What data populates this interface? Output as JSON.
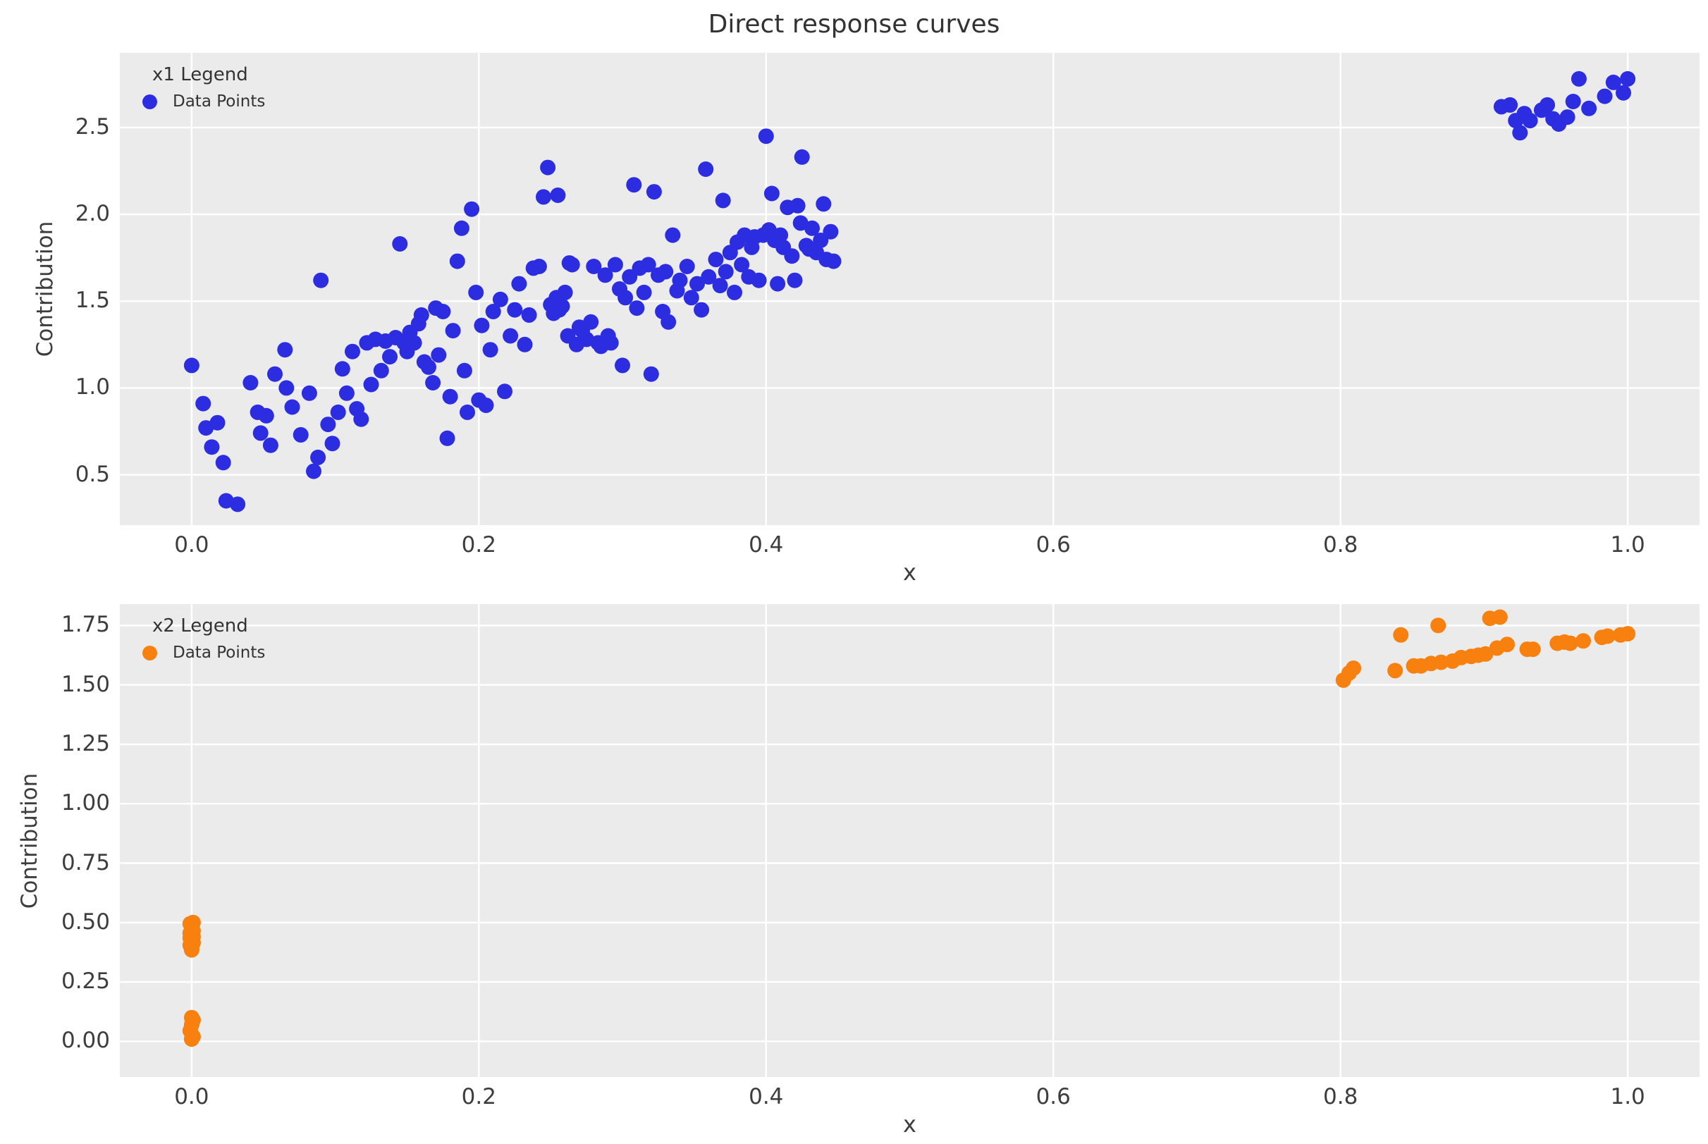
{
  "title": "Direct response curves",
  "colors": {
    "figure_bg": "#ffffff",
    "axes_bg": "#ebebeb",
    "grid": "#ffffff",
    "text": "#3d3d3d",
    "series1": "#2c2ce0",
    "series2": "#f8800e"
  },
  "chart_data": [
    {
      "type": "scatter",
      "legend_title": "x1 Legend",
      "legend_entry": "Data Points",
      "series_color": "#2c2ce0",
      "xlabel": "x",
      "ylabel": "Contribution",
      "xlim": [
        -0.05,
        1.05
      ],
      "ylim": [
        0.21,
        2.93
      ],
      "grid": true,
      "legend_position": "upper left",
      "xticks": {
        "values": [
          0.0,
          0.2,
          0.4,
          0.6,
          0.8,
          1.0
        ],
        "labels": [
          "0.0",
          "0.2",
          "0.4",
          "0.6",
          "0.8",
          "1.0"
        ]
      },
      "yticks": {
        "values": [
          0.5,
          1.0,
          1.5,
          2.0,
          2.5
        ],
        "labels": [
          "0.5",
          "1.0",
          "1.5",
          "2.0",
          "2.5"
        ]
      },
      "points": [
        [
          0.0,
          1.13
        ],
        [
          0.008,
          0.91
        ],
        [
          0.01,
          0.77
        ],
        [
          0.014,
          0.66
        ],
        [
          0.018,
          0.8
        ],
        [
          0.022,
          0.57
        ],
        [
          0.024,
          0.35
        ],
        [
          0.032,
          0.33
        ],
        [
          0.041,
          1.03
        ],
        [
          0.046,
          0.86
        ],
        [
          0.048,
          0.74
        ],
        [
          0.052,
          0.84
        ],
        [
          0.055,
          0.67
        ],
        [
          0.058,
          1.08
        ],
        [
          0.065,
          1.22
        ],
        [
          0.066,
          1.0
        ],
        [
          0.07,
          0.89
        ],
        [
          0.076,
          0.73
        ],
        [
          0.082,
          0.97
        ],
        [
          0.085,
          0.52
        ],
        [
          0.088,
          0.6
        ],
        [
          0.09,
          1.62
        ],
        [
          0.095,
          0.79
        ],
        [
          0.098,
          0.68
        ],
        [
          0.102,
          0.86
        ],
        [
          0.105,
          1.11
        ],
        [
          0.108,
          0.97
        ],
        [
          0.112,
          1.21
        ],
        [
          0.115,
          0.88
        ],
        [
          0.118,
          0.82
        ],
        [
          0.122,
          1.26
        ],
        [
          0.125,
          1.02
        ],
        [
          0.128,
          1.28
        ],
        [
          0.132,
          1.1
        ],
        [
          0.135,
          1.27
        ],
        [
          0.138,
          1.18
        ],
        [
          0.142,
          1.29
        ],
        [
          0.145,
          1.83
        ],
        [
          0.148,
          1.26
        ],
        [
          0.15,
          1.21
        ],
        [
          0.152,
          1.32
        ],
        [
          0.155,
          1.26
        ],
        [
          0.158,
          1.37
        ],
        [
          0.16,
          1.42
        ],
        [
          0.162,
          1.15
        ],
        [
          0.165,
          1.12
        ],
        [
          0.168,
          1.03
        ],
        [
          0.17,
          1.46
        ],
        [
          0.172,
          1.19
        ],
        [
          0.175,
          1.44
        ],
        [
          0.178,
          0.71
        ],
        [
          0.18,
          0.95
        ],
        [
          0.182,
          1.33
        ],
        [
          0.185,
          1.73
        ],
        [
          0.188,
          1.92
        ],
        [
          0.19,
          1.1
        ],
        [
          0.192,
          0.86
        ],
        [
          0.195,
          2.03
        ],
        [
          0.198,
          1.55
        ],
        [
          0.2,
          0.93
        ],
        [
          0.202,
          1.36
        ],
        [
          0.205,
          0.9
        ],
        [
          0.208,
          1.22
        ],
        [
          0.21,
          1.44
        ],
        [
          0.215,
          1.51
        ],
        [
          0.218,
          0.98
        ],
        [
          0.222,
          1.3
        ],
        [
          0.225,
          1.45
        ],
        [
          0.228,
          1.6
        ],
        [
          0.232,
          1.25
        ],
        [
          0.235,
          1.42
        ],
        [
          0.238,
          1.69
        ],
        [
          0.242,
          1.7
        ],
        [
          0.245,
          2.1
        ],
        [
          0.248,
          2.27
        ],
        [
          0.25,
          1.48
        ],
        [
          0.252,
          1.43
        ],
        [
          0.254,
          1.52
        ],
        [
          0.255,
          2.11
        ],
        [
          0.256,
          1.45
        ],
        [
          0.258,
          1.47
        ],
        [
          0.26,
          1.55
        ],
        [
          0.262,
          1.3
        ],
        [
          0.263,
          1.72
        ],
        [
          0.265,
          1.71
        ],
        [
          0.268,
          1.25
        ],
        [
          0.27,
          1.35
        ],
        [
          0.272,
          1.33
        ],
        [
          0.275,
          1.28
        ],
        [
          0.278,
          1.38
        ],
        [
          0.28,
          1.7
        ],
        [
          0.283,
          1.26
        ],
        [
          0.285,
          1.24
        ],
        [
          0.288,
          1.65
        ],
        [
          0.29,
          1.3
        ],
        [
          0.292,
          1.26
        ],
        [
          0.295,
          1.71
        ],
        [
          0.298,
          1.57
        ],
        [
          0.3,
          1.13
        ],
        [
          0.302,
          1.52
        ],
        [
          0.305,
          1.64
        ],
        [
          0.308,
          2.17
        ],
        [
          0.31,
          1.46
        ],
        [
          0.312,
          1.69
        ],
        [
          0.315,
          1.55
        ],
        [
          0.318,
          1.71
        ],
        [
          0.32,
          1.08
        ],
        [
          0.322,
          2.13
        ],
        [
          0.325,
          1.65
        ],
        [
          0.328,
          1.44
        ],
        [
          0.33,
          1.67
        ],
        [
          0.332,
          1.38
        ],
        [
          0.335,
          1.88
        ],
        [
          0.338,
          1.56
        ],
        [
          0.34,
          1.62
        ],
        [
          0.345,
          1.7
        ],
        [
          0.348,
          1.52
        ],
        [
          0.352,
          1.6
        ],
        [
          0.355,
          1.45
        ],
        [
          0.358,
          2.26
        ],
        [
          0.36,
          1.64
        ],
        [
          0.365,
          1.74
        ],
        [
          0.368,
          1.59
        ],
        [
          0.37,
          2.08
        ],
        [
          0.372,
          1.67
        ],
        [
          0.375,
          1.78
        ],
        [
          0.378,
          1.55
        ],
        [
          0.38,
          1.84
        ],
        [
          0.383,
          1.71
        ],
        [
          0.385,
          1.88
        ],
        [
          0.388,
          1.64
        ],
        [
          0.39,
          1.81
        ],
        [
          0.392,
          1.87
        ],
        [
          0.395,
          1.62
        ],
        [
          0.398,
          1.88
        ],
        [
          0.4,
          2.45
        ],
        [
          0.402,
          1.91
        ],
        [
          0.404,
          2.12
        ],
        [
          0.406,
          1.85
        ],
        [
          0.408,
          1.6
        ],
        [
          0.41,
          1.88
        ],
        [
          0.412,
          1.81
        ],
        [
          0.415,
          2.04
        ],
        [
          0.418,
          1.76
        ],
        [
          0.42,
          1.62
        ],
        [
          0.422,
          2.05
        ],
        [
          0.424,
          1.95
        ],
        [
          0.425,
          2.33
        ],
        [
          0.428,
          1.82
        ],
        [
          0.43,
          1.8
        ],
        [
          0.432,
          1.92
        ],
        [
          0.435,
          1.78
        ],
        [
          0.438,
          1.85
        ],
        [
          0.44,
          2.06
        ],
        [
          0.442,
          1.74
        ],
        [
          0.445,
          1.9
        ],
        [
          0.447,
          1.73
        ],
        [
          0.912,
          2.62
        ],
        [
          0.918,
          2.63
        ],
        [
          0.922,
          2.54
        ],
        [
          0.925,
          2.47
        ],
        [
          0.928,
          2.58
        ],
        [
          0.932,
          2.54
        ],
        [
          0.94,
          2.6
        ],
        [
          0.944,
          2.63
        ],
        [
          0.948,
          2.55
        ],
        [
          0.952,
          2.52
        ],
        [
          0.958,
          2.56
        ],
        [
          0.962,
          2.65
        ],
        [
          0.966,
          2.78
        ],
        [
          0.973,
          2.61
        ],
        [
          0.984,
          2.68
        ],
        [
          0.99,
          2.76
        ],
        [
          0.997,
          2.7
        ],
        [
          1.0,
          2.78
        ]
      ]
    },
    {
      "type": "scatter",
      "legend_title": "x2 Legend",
      "legend_entry": "Data Points",
      "series_color": "#f8800e",
      "xlabel": "x",
      "ylabel": "Contribution",
      "xlim": [
        -0.05,
        1.05
      ],
      "ylim": [
        -0.15,
        1.84
      ],
      "grid": true,
      "legend_position": "upper left",
      "xticks": {
        "values": [
          0.0,
          0.2,
          0.4,
          0.6,
          0.8,
          1.0
        ],
        "labels": [
          "0.0",
          "0.2",
          "0.4",
          "0.6",
          "0.8",
          "1.0"
        ]
      },
      "yticks": {
        "values": [
          0.0,
          0.25,
          0.5,
          0.75,
          1.0,
          1.25,
          1.5,
          1.75
        ],
        "labels": [
          "0.00",
          "0.25",
          "0.50",
          "0.75",
          "1.00",
          "1.25",
          "1.50",
          "1.75"
        ]
      },
      "points": [
        [
          0.0,
          0.01
        ],
        [
          0.001,
          0.02
        ],
        [
          -0.001,
          0.045
        ],
        [
          0.0,
          0.07
        ],
        [
          0.001,
          0.09
        ],
        [
          0.0,
          0.1
        ],
        [
          0.0,
          0.385
        ],
        [
          0.0,
          0.395
        ],
        [
          -0.001,
          0.405
        ],
        [
          0.001,
          0.415
        ],
        [
          0.0,
          0.425
        ],
        [
          -0.001,
          0.435
        ],
        [
          0.001,
          0.44
        ],
        [
          0.0,
          0.45
        ],
        [
          -0.001,
          0.455
        ],
        [
          0.001,
          0.465
        ],
        [
          0.0,
          0.475
        ],
        [
          0.0,
          0.485
        ],
        [
          -0.001,
          0.495
        ],
        [
          0.001,
          0.5
        ],
        [
          0.802,
          1.52
        ],
        [
          0.806,
          1.55
        ],
        [
          0.809,
          1.57
        ],
        [
          0.838,
          1.56
        ],
        [
          0.842,
          1.71
        ],
        [
          0.851,
          1.58
        ],
        [
          0.856,
          1.58
        ],
        [
          0.863,
          1.59
        ],
        [
          0.868,
          1.75
        ],
        [
          0.87,
          1.595
        ],
        [
          0.878,
          1.6
        ],
        [
          0.884,
          1.615
        ],
        [
          0.891,
          1.62
        ],
        [
          0.896,
          1.625
        ],
        [
          0.901,
          1.63
        ],
        [
          0.904,
          1.78
        ],
        [
          0.911,
          1.785
        ],
        [
          0.909,
          1.655
        ],
        [
          0.916,
          1.67
        ],
        [
          0.93,
          1.65
        ],
        [
          0.934,
          1.65
        ],
        [
          0.951,
          1.675
        ],
        [
          0.956,
          1.68
        ],
        [
          0.96,
          1.675
        ],
        [
          0.969,
          1.685
        ],
        [
          0.982,
          1.7
        ],
        [
          0.986,
          1.705
        ],
        [
          0.995,
          1.71
        ],
        [
          1.0,
          1.715
        ]
      ]
    }
  ]
}
